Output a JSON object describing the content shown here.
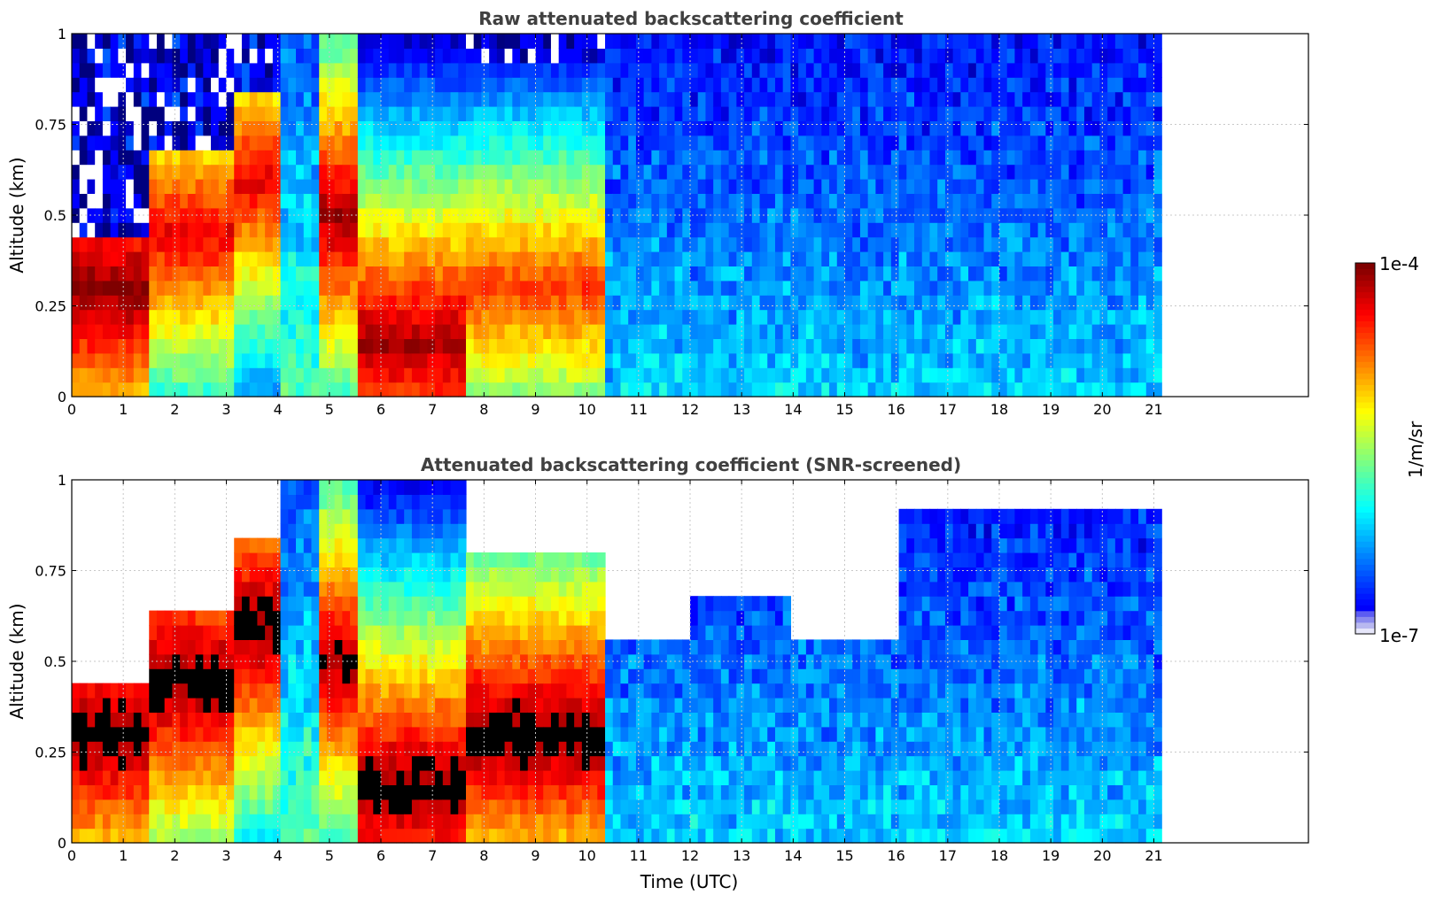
{
  "colors": {
    "background": "#ffffff",
    "title": "#404040",
    "grid": "#c8c8c8",
    "masked": "#000000",
    "jet": [
      "#00007f",
      "#0000ff",
      "#007fff",
      "#00ffff",
      "#7fff7f",
      "#ffff00",
      "#ff7f00",
      "#ff0000",
      "#7f0000"
    ]
  },
  "chart_data": [
    {
      "type": "heatmap",
      "title": "Raw attenuated backscattering coefficient",
      "xlabel": "",
      "ylabel": "Altitude (km)",
      "xlim": [
        0,
        24
      ],
      "ylim": [
        0,
        1
      ],
      "xticks": [
        "0",
        "1",
        "2",
        "3",
        "4",
        "5",
        "6",
        "7",
        "8",
        "9",
        "10",
        "11",
        "12",
        "13",
        "14",
        "15",
        "16",
        "17",
        "18",
        "19",
        "20",
        "21"
      ],
      "yticks": [
        "0",
        "0.25",
        "0.5",
        "0.75",
        "1"
      ],
      "data_end_time": 21.15,
      "grid": true,
      "screened": false,
      "colorbar_min": 1e-07,
      "colorbar_max": 0.0001,
      "layers": [
        {
          "x_start": 0.0,
          "x_end": 1.5,
          "top_altitude": 0.45,
          "peak_altitude": 0.3,
          "peak_value": 0.0001
        },
        {
          "x_start": 1.5,
          "x_end": 3.2,
          "top_altitude": 0.7,
          "peak_altitude": 0.45,
          "peak_value": 5e-05
        },
        {
          "x_start": 3.2,
          "x_end": 4.0,
          "top_altitude": 0.85,
          "peak_altitude": 0.6,
          "peak_value": 5e-05
        },
        {
          "x_start": 4.8,
          "x_end": 5.5,
          "top_altitude": 1.0,
          "peak_altitude": 0.5,
          "peak_value": 8e-05
        },
        {
          "x_start": 5.5,
          "x_end": 7.7,
          "top_altitude": 1.0,
          "peak_altitude": 0.15,
          "peak_value": 8e-05
        },
        {
          "x_start": 7.7,
          "x_end": 10.3,
          "top_altitude": 0.9,
          "peak_altitude": 0.3,
          "peak_value": 3e-05
        },
        {
          "x_start": 10.3,
          "x_end": 21.15,
          "top_altitude": 1.0,
          "peak_altitude": 0.05,
          "peak_value": 1e-06
        }
      ]
    },
    {
      "type": "heatmap",
      "title": "Attenuated backscattering coefficient (SNR-screened)",
      "xlabel": "Time (UTC)",
      "ylabel": "Altitude (km)",
      "xlim": [
        0,
        24
      ],
      "ylim": [
        0,
        1
      ],
      "xticks": [
        "0",
        "1",
        "2",
        "3",
        "4",
        "5",
        "6",
        "7",
        "8",
        "9",
        "10",
        "11",
        "12",
        "13",
        "14",
        "15",
        "16",
        "17",
        "18",
        "19",
        "20",
        "21"
      ],
      "yticks": [
        "0",
        "0.25",
        "0.5",
        "0.75",
        "1"
      ],
      "data_end_time": 21.15,
      "grid": true,
      "screened": true,
      "colorbar_min": 1e-07,
      "colorbar_max": 0.0001,
      "layers": [
        {
          "x_start": 0.0,
          "x_end": 1.5,
          "top_altitude": 0.45,
          "peak_altitude": 0.3,
          "peak_value": 0.0001
        },
        {
          "x_start": 1.5,
          "x_end": 3.2,
          "top_altitude": 0.62,
          "peak_altitude": 0.45,
          "peak_value": 0.0001
        },
        {
          "x_start": 3.2,
          "x_end": 4.0,
          "top_altitude": 0.85,
          "peak_altitude": 0.6,
          "peak_value": 0.0001
        },
        {
          "x_start": 4.8,
          "x_end": 5.5,
          "top_altitude": 1.0,
          "peak_altitude": 0.5,
          "peak_value": 8e-05
        },
        {
          "x_start": 5.5,
          "x_end": 7.7,
          "top_altitude": 1.0,
          "peak_altitude": 0.15,
          "peak_value": 0.0001
        },
        {
          "x_start": 7.7,
          "x_end": 10.3,
          "top_altitude": 0.8,
          "peak_altitude": 0.3,
          "peak_value": 0.0001
        },
        {
          "x_start": 10.3,
          "x_end": 12.0,
          "top_altitude": 0.58,
          "peak_altitude": 0.05,
          "peak_value": 1e-06
        },
        {
          "x_start": 12.0,
          "x_end": 14.0,
          "top_altitude": 0.7,
          "peak_altitude": 0.05,
          "peak_value": 1e-06
        },
        {
          "x_start": 14.0,
          "x_end": 16.0,
          "top_altitude": 0.55,
          "peak_altitude": 0.05,
          "peak_value": 1e-06
        },
        {
          "x_start": 16.0,
          "x_end": 21.15,
          "top_altitude": 0.9,
          "peak_altitude": 0.05,
          "peak_value": 1e-06
        }
      ]
    }
  ],
  "colorbar": {
    "label": "1/m/sr",
    "max_label": "1e-4",
    "min_label": "1e-7"
  }
}
